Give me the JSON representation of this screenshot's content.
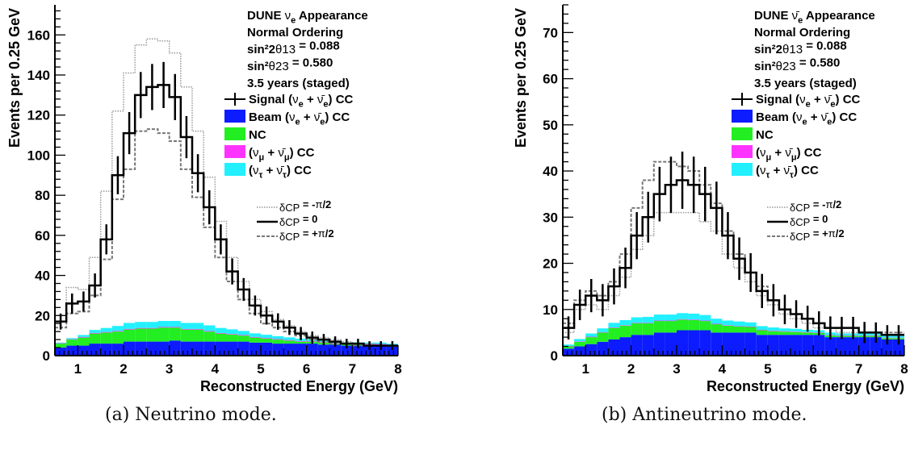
{
  "chart_data": [
    {
      "type": "histogram",
      "panel": "a",
      "title_lines": [
        "DUNE νe Appearance",
        "Normal Ordering",
        "sin²2θ13 = 0.088",
        "sin²θ23 = 0.580",
        "3.5 years (staged)"
      ],
      "xlabel": "Reconstructed Energy (GeV)",
      "ylabel": "Events per 0.25 GeV",
      "xlim": [
        0.5,
        8.0
      ],
      "ylim": [
        0,
        175
      ],
      "xticks": [
        1,
        2,
        3,
        4,
        5,
        6,
        7,
        8
      ],
      "yticks": [
        0,
        20,
        40,
        60,
        80,
        100,
        120,
        140,
        160
      ],
      "bin_edges_start": 0.5,
      "bin_width": 0.25,
      "stack": [
        {
          "name": "Beam (νe + ν̄e) CC",
          "color": "#0c1cff",
          "values": [
            4,
            5,
            5,
            6,
            6,
            6,
            7,
            7,
            7,
            7,
            7.5,
            7,
            7,
            7,
            7,
            7,
            7,
            6.5,
            6.5,
            6,
            6,
            6,
            6,
            5.5,
            5.5,
            5,
            5,
            5,
            5,
            4.5
          ]
        },
        {
          "name": "NC",
          "color": "#22ee22",
          "values": [
            2,
            3,
            4,
            5,
            5.5,
            6,
            6,
            6.5,
            6.5,
            7,
            6.5,
            6,
            6,
            5,
            4,
            3.5,
            3,
            2.5,
            2,
            2,
            1.5,
            1,
            1,
            1,
            0.5,
            0.5,
            0.5,
            0.5,
            0.5,
            0.5
          ]
        },
        {
          "name": "(νμ + ν̄μ) CC",
          "color": "#ff33ff",
          "values": [
            0.2,
            0.2,
            0.3,
            0.3,
            0.3,
            0.3,
            0.3,
            0.3,
            0.3,
            0.3,
            0.3,
            0.3,
            0.3,
            0.3,
            0.3,
            0.3,
            0.3,
            0.3,
            0.3,
            0.3,
            0.3,
            0.3,
            0.3,
            0.3,
            0.3,
            0.3,
            0.3,
            0.3,
            0.3,
            0.3
          ]
        },
        {
          "name": "(ντ + ν̄τ) CC",
          "color": "#22f0ff",
          "values": [
            0.3,
            0.5,
            1,
            1.5,
            2,
            2.5,
            3,
            3,
            3,
            3,
            3,
            3,
            3,
            2.8,
            2.5,
            2.3,
            2,
            1.8,
            1.6,
            1.4,
            1.3,
            1.2,
            1,
            1,
            0.9,
            0.8,
            0.8,
            0.7,
            0.7,
            0.6
          ]
        }
      ],
      "signal_dcp0": [
        17,
        26,
        27,
        35,
        58,
        90,
        111,
        130,
        134,
        135,
        129,
        109,
        91,
        74,
        58,
        42,
        33,
        25,
        20,
        17,
        14,
        11,
        9,
        8,
        7,
        6,
        6,
        5,
        5,
        5
      ],
      "signal_errors": [
        4,
        5,
        5,
        6,
        7.5,
        9.5,
        10.5,
        11.5,
        11.5,
        11.5,
        11.5,
        10.5,
        9.5,
        8.5,
        7.5,
        6.5,
        5.7,
        5,
        4.5,
        4.1,
        3.7,
        3.3,
        3,
        2.8,
        2.6,
        2.4,
        2.4,
        2.2,
        2.2,
        2.2
      ],
      "signal_dcp_minus_pi2": [
        20,
        34,
        33,
        49,
        82,
        122,
        141,
        155,
        158,
        157,
        151,
        134,
        112,
        89,
        67,
        49,
        37,
        28,
        22,
        18,
        15,
        12,
        10,
        9,
        8,
        7,
        6,
        6,
        5,
        5
      ],
      "signal_dcp_plus_pi2": [
        14,
        21,
        22,
        30,
        48,
        78,
        93,
        112,
        113,
        111,
        107,
        93,
        79,
        64,
        49,
        37,
        28,
        21,
        16,
        14,
        12,
        10,
        8,
        7,
        6,
        6,
        5,
        5,
        5,
        5
      ],
      "legend": {
        "signal": "Signal (νe + ν̄e) CC",
        "beam": "Beam (νe + ν̄e) CC",
        "nc": "NC",
        "numu": "(νμ + ν̄μ) CC",
        "nutau": "(ντ + ν̄τ) CC",
        "dcp_minus": "δCP = -π/2",
        "dcp_zero": "δCP = 0",
        "dcp_plus": "δCP = +π/2"
      }
    },
    {
      "type": "histogram",
      "panel": "b",
      "title_lines": [
        "DUNE ν̄e Appearance",
        "Normal Ordering",
        "sin²2θ13 = 0.088",
        "sin²θ23 = 0.580",
        "3.5 years (staged)"
      ],
      "xlabel": "Reconstructed Energy (GeV)",
      "ylabel": "Events per 0.25 GeV",
      "xlim": [
        0.5,
        8.0
      ],
      "ylim": [
        0,
        76
      ],
      "xticks": [
        1,
        2,
        3,
        4,
        5,
        6,
        7,
        8
      ],
      "yticks": [
        0,
        10,
        20,
        30,
        40,
        50,
        60,
        70
      ],
      "bin_edges_start": 0.5,
      "bin_width": 0.25,
      "stack": [
        {
          "name": "Beam (νe + ν̄e) CC",
          "color": "#0c1cff",
          "values": [
            1.5,
            2,
            2.5,
            3,
            3.5,
            4,
            4.5,
            4.5,
            5,
            5,
            5.5,
            5.5,
            5.5,
            5,
            5,
            5,
            5,
            4.5,
            4.5,
            4.5,
            4.5,
            4.5,
            4.5,
            4,
            4,
            4,
            4,
            4,
            3.5,
            3.5
          ]
        },
        {
          "name": "NC",
          "color": "#22ee22",
          "values": [
            0.5,
            1,
            1.5,
            2,
            2.5,
            2.5,
            2.5,
            2.5,
            2.5,
            2.5,
            2.3,
            2.2,
            2,
            1.8,
            1.5,
            1.3,
            1.2,
            1,
            0.8,
            0.7,
            0.6,
            0.5,
            0.4,
            0.4,
            0.3,
            0.3,
            0.3,
            0.3,
            0.3,
            0.3
          ]
        },
        {
          "name": "(νμ + ν̄μ) CC",
          "color": "#ff33ff",
          "values": [
            0.1,
            0.1,
            0.1,
            0.1,
            0.1,
            0.1,
            0.1,
            0.1,
            0.1,
            0.1,
            0.1,
            0.1,
            0.1,
            0.1,
            0.1,
            0.1,
            0.1,
            0.1,
            0.1,
            0.1,
            0.1,
            0.1,
            0.1,
            0.1,
            0.1,
            0.1,
            0.1,
            0.1,
            0.1,
            0.1
          ]
        },
        {
          "name": "(ντ + ν̄τ) CC",
          "color": "#22f0ff",
          "values": [
            0.3,
            0.5,
            0.7,
            0.8,
            1,
            1.1,
            1.2,
            1.3,
            1.3,
            1.3,
            1.3,
            1.3,
            1.2,
            1.1,
            1,
            1,
            0.9,
            0.8,
            0.7,
            0.6,
            0.6,
            0.5,
            0.5,
            0.5,
            0.4,
            0.4,
            0.4,
            0.4,
            0.4,
            0.4
          ]
        }
      ],
      "signal_dcp0": [
        6,
        11,
        13,
        12,
        15,
        19,
        26,
        30,
        35,
        37,
        38,
        37,
        35,
        32,
        26,
        21,
        18,
        14,
        12,
        10,
        9,
        8,
        7,
        6,
        6,
        6,
        5,
        5,
        4.5,
        4.5
      ],
      "signal_errors": [
        2.5,
        3.3,
        3.6,
        3.5,
        3.9,
        4.4,
        5.1,
        5.5,
        5.9,
        6.1,
        6.2,
        6.1,
        5.9,
        5.7,
        5.1,
        4.6,
        4.2,
        3.7,
        3.5,
        3.2,
        3,
        2.8,
        2.6,
        2.5,
        2.4,
        2.4,
        2.3,
        2.2,
        2.1,
        2.1
      ],
      "signal_dcp_minus_pi2": [
        5,
        10,
        11,
        10,
        13,
        17,
        23,
        26,
        31,
        31,
        31,
        31,
        29,
        27,
        22,
        19,
        16,
        13,
        11,
        9,
        8,
        7,
        6,
        6,
        5,
        5,
        5,
        5,
        4.5,
        4.5
      ],
      "signal_dcp_plus_pi2": [
        7,
        12,
        14,
        13,
        16,
        22,
        32,
        38,
        42,
        42,
        41,
        40,
        37,
        33,
        27,
        22,
        18,
        15,
        12,
        10,
        9,
        8,
        7,
        6,
        6,
        6,
        5,
        5,
        5,
        5
      ],
      "legend": {
        "signal": "Signal (νe + ν̄e) CC",
        "beam": "Beam (νe + ν̄e) CC",
        "nc": "NC",
        "numu": "(νμ + ν̄μ) CC",
        "nutau": "(ντ + ν̄τ) CC",
        "dcp_minus": "δCP = -π/2",
        "dcp_zero": "δCP = 0",
        "dcp_plus": "δCP = +π/2"
      }
    }
  ],
  "captions": {
    "a": "(a) Neutrino mode.",
    "b": "(b) Antineutrino mode."
  }
}
